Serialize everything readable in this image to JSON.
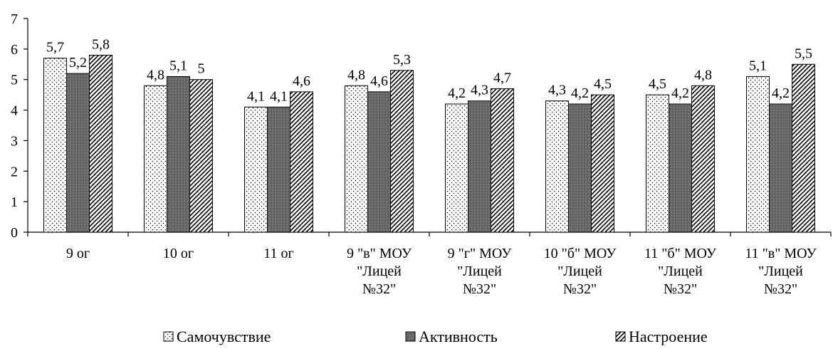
{
  "chart_data": {
    "type": "bar",
    "categories": [
      [
        "9 ог"
      ],
      [
        "10 ог"
      ],
      [
        "11 ог"
      ],
      [
        "9 \"в\" МОУ",
        "\"Лицей",
        "№32\""
      ],
      [
        "9 \"г\" МОУ",
        "\"Лицей",
        "№32\""
      ],
      [
        "10 \"б\" МОУ",
        "\"Лицей",
        "№32\""
      ],
      [
        "11 \"б\" МОУ",
        "\"Лицей",
        "№32\""
      ],
      [
        "11 \"в\" МОУ",
        "\"Лицей",
        "№32\""
      ]
    ],
    "series": [
      {
        "name": "Самочувствие",
        "values": [
          5.7,
          4.8,
          4.1,
          4.8,
          4.2,
          4.3,
          4.5,
          5.1
        ],
        "labels": [
          "5,7",
          "4,8",
          "4,1",
          "4,8",
          "4,2",
          "4,3",
          "4,5",
          "5,1"
        ],
        "pattern": "dots"
      },
      {
        "name": "Активность",
        "values": [
          5.2,
          5.1,
          4.1,
          4.6,
          4.3,
          4.2,
          4.2,
          4.2
        ],
        "labels": [
          "5,2",
          "5,1",
          "4,1",
          "4,6",
          "4,3",
          "4,2",
          "4,2",
          "4,2"
        ],
        "pattern": "dark"
      },
      {
        "name": "Настроение",
        "values": [
          5.8,
          5.0,
          4.6,
          5.3,
          4.7,
          4.5,
          4.8,
          5.5
        ],
        "labels": [
          "5,8",
          "5",
          "4,6",
          "5,3",
          "4,7",
          "4,5",
          "4,8",
          "5,5"
        ],
        "pattern": "hatch"
      }
    ],
    "ylim": [
      0,
      7
    ],
    "yticks": [
      0,
      1,
      2,
      3,
      4,
      5,
      6,
      7
    ],
    "grid": false,
    "legend_position": "bottom"
  }
}
